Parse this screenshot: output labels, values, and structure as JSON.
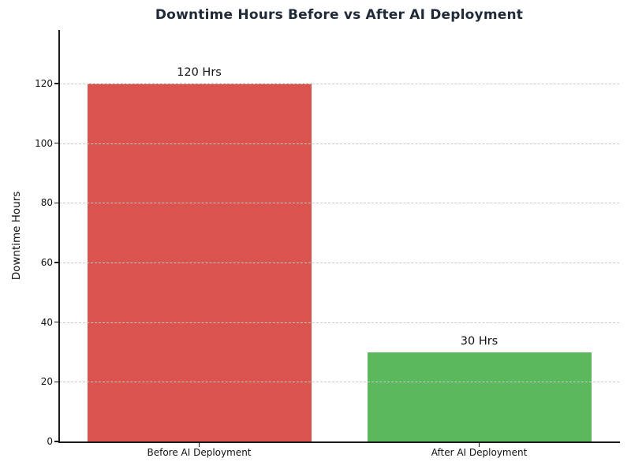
{
  "chart_data": {
    "type": "bar",
    "title": "Downtime Hours Before vs After AI Deployment",
    "categories": [
      "Before AI Deployment",
      "After AI Deployment"
    ],
    "values": [
      120,
      30
    ],
    "bar_labels": [
      "120 Hrs",
      "30 Hrs"
    ],
    "bar_colors": [
      "#d9534f",
      "#5cb85c"
    ],
    "xlabel": "",
    "ylabel": "Downtime Hours",
    "ylim": [
      0,
      138
    ],
    "yticks": [
      0,
      20,
      40,
      60,
      80,
      100,
      120
    ],
    "grid": "horizontal-dashed",
    "grid_color": "#c9c9c9",
    "grid_above_bars": true,
    "legend": "none",
    "title_color": "#1f2937",
    "bar_width_fraction": 0.8
  }
}
